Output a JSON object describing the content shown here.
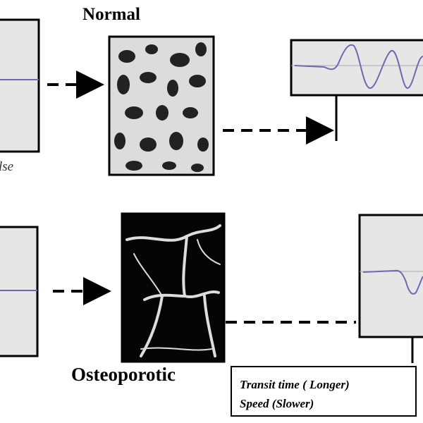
{
  "labels": {
    "normal": "Normal",
    "pulse": "lse",
    "osteoporotic": "Osteoporotic"
  },
  "result_box": {
    "line1": "Transit time ( Longer)",
    "line2": "Speed (Slower)"
  }
}
